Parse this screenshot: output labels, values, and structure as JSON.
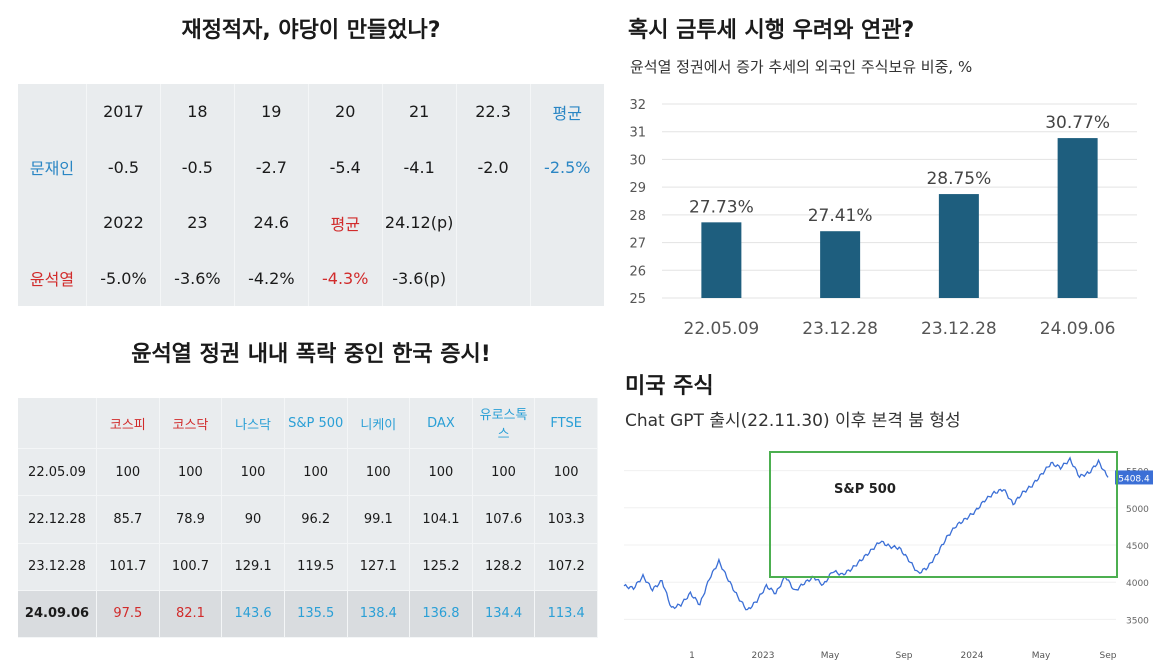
{
  "left": {
    "deficit_title": "재정적자, 야당이 만들었나?",
    "deficit_table": {
      "rows": [
        [
          "",
          "2017",
          "18",
          "19",
          "20",
          "21",
          "22.3",
          "평균"
        ],
        [
          "문재인",
          "-0.5",
          "-0.5",
          "-2.7",
          "-5.4",
          "-4.1",
          "-2.0",
          "-2.5%"
        ],
        [
          "",
          "2022",
          "23",
          "24.6",
          "평균",
          "24.12(p)",
          "",
          ""
        ],
        [
          "윤석열",
          "-5.0%",
          "-3.6%",
          "-4.2%",
          "-4.3%",
          "-3.6(p)",
          "",
          ""
        ]
      ]
    },
    "market_title": "윤석열 정권 내내 폭락 중인 한국 증시!",
    "market_table": {
      "headers": [
        "",
        "코스피",
        "코스닥",
        "나스닥",
        "S&P 500",
        "니케이",
        "DAX",
        "유로스톡스",
        "FTSE"
      ],
      "rows": [
        [
          "22.05.09",
          "100",
          "100",
          "100",
          "100",
          "100",
          "100",
          "100",
          "100"
        ],
        [
          "22.12.28",
          "85.7",
          "78.9",
          "90",
          "96.2",
          "99.1",
          "104.1",
          "107.6",
          "103.3"
        ],
        [
          "23.12.28",
          "101.7",
          "100.7",
          "129.1",
          "119.5",
          "127.1",
          "125.2",
          "128.2",
          "107.2"
        ],
        [
          "24.09.06",
          "97.5",
          "82.1",
          "143.6",
          "135.5",
          "138.4",
          "136.8",
          "134.4",
          "113.4"
        ]
      ]
    }
  },
  "chart_data": [
    {
      "type": "bar",
      "title": "혹시 금투세 시행 우려와 연관?",
      "subtitle": "윤석열 정권에서 증가 추세의 외국인 주식보유 비중, %",
      "categories": [
        "22.05.09",
        "23.12.28",
        "23.12.28",
        "24.09.06"
      ],
      "values": [
        27.73,
        27.41,
        28.75,
        30.77
      ],
      "value_labels": [
        "27.73%",
        "27.41%",
        "28.75%",
        "30.77%"
      ],
      "ylim": [
        25,
        32
      ],
      "yticks": [
        "32",
        "31",
        "30",
        "29",
        "28",
        "27",
        "26",
        "25"
      ],
      "bar_color": "#1e5e7e",
      "grid": true
    },
    {
      "type": "line",
      "title": "미국 주식",
      "subtitle": "Chat GPT 출시(22.11.30) 이후 본격 붐 형성",
      "series_label": "S&P 500",
      "last_value_label": "5408.4",
      "xticks": [
        "1",
        "2023",
        "May",
        "Sep",
        "2024",
        "May",
        "Sep"
      ],
      "yticks": [
        "5500",
        "5000",
        "4500",
        "4000",
        "3500"
      ],
      "ylim": [
        3250,
        5750
      ],
      "line_color": "#3b6fd6",
      "box_color": "#4caf50",
      "series": [
        {
          "name": "S&P 500",
          "values": [
            3950,
            3920,
            4080,
            3900,
            4020,
            3650,
            3700,
            3850,
            3700,
            4050,
            4280,
            4030,
            3800,
            3620,
            3750,
            3950,
            3850,
            4080,
            3880,
            3990,
            4070,
            3960,
            4150,
            4100,
            4180,
            4300,
            4420,
            4550,
            4480,
            4460,
            4300,
            4120,
            4200,
            4380,
            4600,
            4760,
            4850,
            4950,
            5100,
            5200,
            5250,
            5050,
            5200,
            5300,
            5450,
            5600,
            5540,
            5650,
            5420,
            5470,
            5620,
            5408
          ]
        }
      ]
    }
  ]
}
